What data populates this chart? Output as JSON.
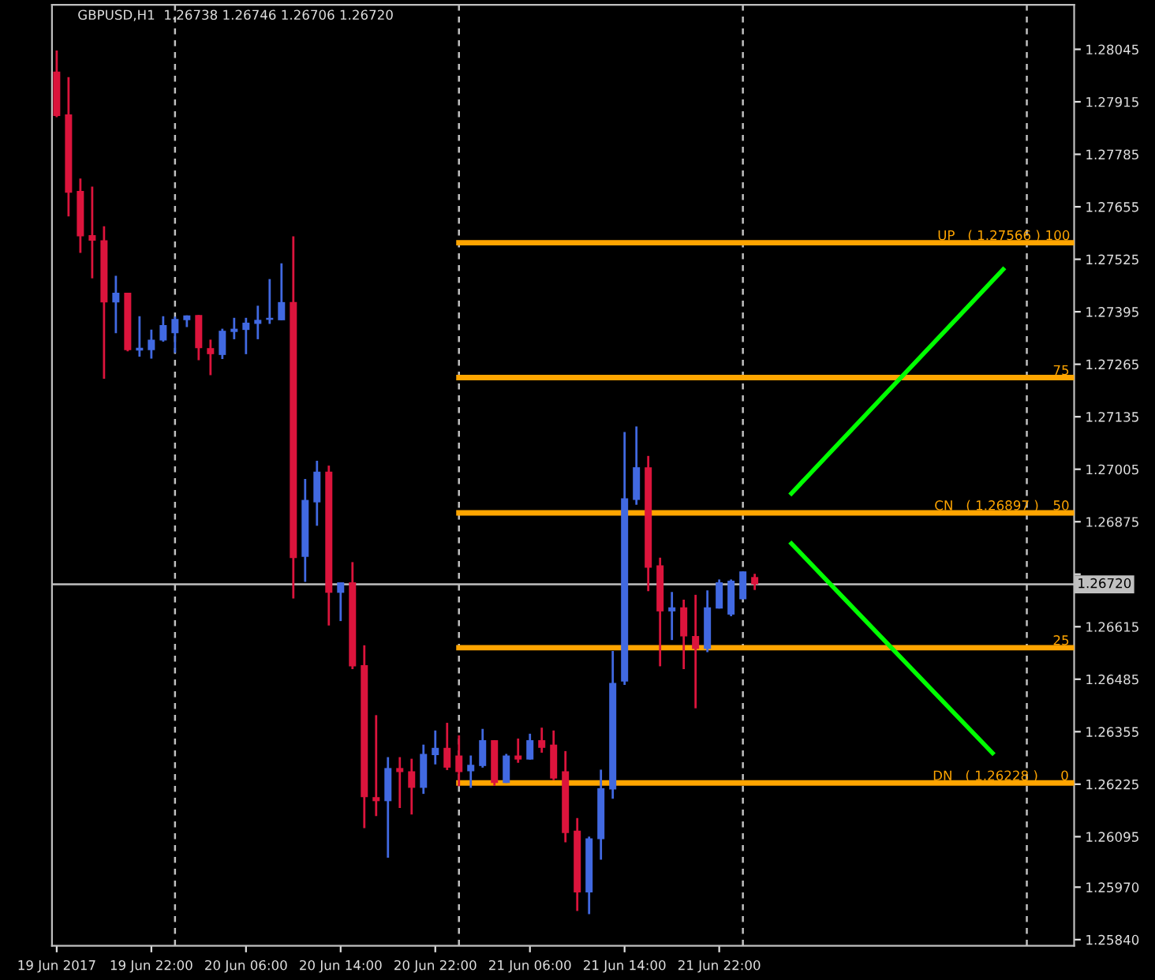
{
  "chart_data": {
    "type": "candlestick",
    "title": "GBPUSD,H1  1.26738 1.26746 1.26706 1.26720",
    "x": [
      "2017-06-19T14:00",
      "2017-06-19T15:00",
      "2017-06-19T16:00",
      "2017-06-19T17:00",
      "2017-06-19T18:00",
      "2017-06-19T19:00",
      "2017-06-19T20:00",
      "2017-06-19T21:00",
      "2017-06-19T22:00",
      "2017-06-19T23:00",
      "2017-06-20T00:00",
      "2017-06-20T01:00",
      "2017-06-20T02:00",
      "2017-06-20T03:00",
      "2017-06-20T04:00",
      "2017-06-20T05:00",
      "2017-06-20T06:00",
      "2017-06-20T07:00",
      "2017-06-20T08:00",
      "2017-06-20T09:00",
      "2017-06-20T10:00",
      "2017-06-20T11:00",
      "2017-06-20T12:00",
      "2017-06-20T13:00",
      "2017-06-20T14:00",
      "2017-06-20T15:00",
      "2017-06-20T16:00",
      "2017-06-20T17:00",
      "2017-06-20T18:00",
      "2017-06-20T19:00",
      "2017-06-20T20:00",
      "2017-06-20T21:00",
      "2017-06-20T22:00",
      "2017-06-20T23:00",
      "2017-06-21T00:00",
      "2017-06-21T01:00",
      "2017-06-21T02:00",
      "2017-06-21T03:00",
      "2017-06-21T04:00",
      "2017-06-21T05:00",
      "2017-06-21T06:00",
      "2017-06-21T07:00",
      "2017-06-21T08:00",
      "2017-06-21T09:00",
      "2017-06-21T10:00",
      "2017-06-21T11:00",
      "2017-06-21T12:00",
      "2017-06-21T13:00",
      "2017-06-21T14:00",
      "2017-06-21T15:00",
      "2017-06-21T16:00",
      "2017-06-21T17:00",
      "2017-06-21T18:00",
      "2017-06-21T19:00",
      "2017-06-21T20:00",
      "2017-06-21T21:00",
      "2017-06-21T22:00",
      "2017-06-21T23:00",
      "2017-06-22T00:00",
      "2017-06-22T01:00"
    ],
    "ohlc": [
      [
        1.2799,
        1.28042,
        1.27877,
        1.2788
      ],
      [
        1.27884,
        1.27976,
        1.27631,
        1.2769
      ],
      [
        1.27694,
        1.27725,
        1.27541,
        1.27582
      ],
      [
        1.27585,
        1.27705,
        1.27478,
        1.27571
      ],
      [
        1.27572,
        1.27607,
        1.27229,
        1.27418
      ],
      [
        1.27418,
        1.27484,
        1.27342,
        1.27442
      ],
      [
        1.27442,
        1.27442,
        1.27297,
        1.273
      ],
      [
        1.27299,
        1.27384,
        1.27284,
        1.27306
      ],
      [
        1.273,
        1.27351,
        1.27279,
        1.27326
      ],
      [
        1.27324,
        1.27384,
        1.27321,
        1.27362
      ],
      [
        1.27342,
        1.27383,
        1.27293,
        1.27377
      ],
      [
        1.27374,
        1.27386,
        1.27357,
        1.27386
      ],
      [
        1.27387,
        1.27387,
        1.27275,
        1.27305
      ],
      [
        1.27305,
        1.27326,
        1.27238,
        1.2729
      ],
      [
        1.27288,
        1.27353,
        1.27278,
        1.27348
      ],
      [
        1.27345,
        1.2738,
        1.27327,
        1.27353
      ],
      [
        1.2735,
        1.2738,
        1.2729,
        1.27368
      ],
      [
        1.27365,
        1.2741,
        1.27327,
        1.27375
      ],
      [
        1.27375,
        1.27476,
        1.27365,
        1.2738
      ],
      [
        1.27374,
        1.27515,
        1.27374,
        1.27419
      ],
      [
        1.27419,
        1.27582,
        1.26685,
        1.26785
      ],
      [
        1.26788,
        1.26981,
        1.26726,
        1.26929
      ],
      [
        1.26923,
        1.27026,
        1.26865,
        1.26999
      ],
      [
        1.26999,
        1.27014,
        1.26618,
        1.26699
      ],
      [
        1.26699,
        1.26725,
        1.26629,
        1.26725
      ],
      [
        1.26725,
        1.26775,
        1.2651,
        1.26517
      ],
      [
        1.2652,
        1.26569,
        1.26116,
        1.26193
      ],
      [
        1.26193,
        1.26396,
        1.26146,
        1.26183
      ],
      [
        1.26183,
        1.26292,
        1.26043,
        1.26265
      ],
      [
        1.26265,
        1.26292,
        1.26166,
        1.26255
      ],
      [
        1.26257,
        1.26288,
        1.2615,
        1.26216
      ],
      [
        1.26216,
        1.26323,
        1.26201,
        1.263
      ],
      [
        1.26297,
        1.26358,
        1.26274,
        1.26315
      ],
      [
        1.26315,
        1.26377,
        1.2626,
        1.26266
      ],
      [
        1.26296,
        1.26346,
        1.2622,
        1.26255
      ],
      [
        1.26257,
        1.26296,
        1.26216,
        1.26273
      ],
      [
        1.2627,
        1.26362,
        1.26266,
        1.26334
      ],
      [
        1.26334,
        1.26334,
        1.26221,
        1.26228
      ],
      [
        1.26228,
        1.263,
        1.26228,
        1.26296
      ],
      [
        1.26296,
        1.26338,
        1.26278,
        1.26286
      ],
      [
        1.26286,
        1.2635,
        1.26286,
        1.26334
      ],
      [
        1.26334,
        1.26365,
        1.26303,
        1.26315
      ],
      [
        1.26323,
        1.26358,
        1.26235,
        1.26239
      ],
      [
        1.26257,
        1.26307,
        1.26081,
        1.26104
      ],
      [
        1.2611,
        1.26141,
        1.25911,
        1.25957
      ],
      [
        1.25957,
        1.26095,
        1.25903,
        1.26091
      ],
      [
        1.26089,
        1.26261,
        1.26038,
        1.26215
      ],
      [
        1.26212,
        1.26555,
        1.26189,
        1.26476
      ],
      [
        1.26479,
        1.27097,
        1.26471,
        1.26933
      ],
      [
        1.26929,
        1.27111,
        1.26917,
        1.2701
      ],
      [
        1.2701,
        1.27038,
        1.26703,
        1.26761
      ],
      [
        1.26767,
        1.26786,
        1.26517,
        1.26653
      ],
      [
        1.26653,
        1.26701,
        1.26582,
        1.26663
      ],
      [
        1.26663,
        1.26682,
        1.2651,
        1.26591
      ],
      [
        1.26592,
        1.26694,
        1.26413,
        1.2656
      ],
      [
        1.2656,
        1.26705,
        1.26552,
        1.26663
      ],
      [
        1.2666,
        1.26732,
        1.2666,
        1.26725
      ],
      [
        1.26645,
        1.26732,
        1.26641,
        1.26729
      ],
      [
        1.26683,
        1.26752,
        1.26683,
        1.26752
      ],
      [
        1.26738,
        1.26746,
        1.26706,
        1.2672
      ]
    ],
    "colors": [
      "#dc143c",
      "#dc143c",
      "#dc143c",
      "#dc143c",
      "#dc143c",
      "#4169e1",
      "#dc143c",
      "#4169e1",
      "#4169e1",
      "#4169e1",
      "#4169e1",
      "#4169e1",
      "#dc143c",
      "#dc143c",
      "#4169e1",
      "#4169e1",
      "#4169e1",
      "#4169e1",
      "#4169e1",
      "#4169e1",
      "#dc143c",
      "#4169e1",
      "#4169e1",
      "#dc143c",
      "#4169e1",
      "#dc143c",
      "#dc143c",
      "#dc143c",
      "#4169e1",
      "#dc143c",
      "#dc143c",
      "#4169e1",
      "#4169e1",
      "#dc143c",
      "#dc143c",
      "#4169e1",
      "#4169e1",
      "#dc143c",
      "#4169e1",
      "#dc143c",
      "#4169e1",
      "#dc143c",
      "#dc143c",
      "#dc143c",
      "#dc143c",
      "#4169e1",
      "#4169e1",
      "#4169e1",
      "#4169e1",
      "#4169e1",
      "#dc143c",
      "#dc143c",
      "#4169e1",
      "#dc143c",
      "#dc143c",
      "#4169e1",
      "#4169e1",
      "#4169e1",
      "#4169e1",
      "#dc143c"
    ],
    "series": [
      {
        "type": "line",
        "color": "#ffa500",
        "x": [
          "2017-06-21T00:00",
          "2017-06-23T04:00"
        ],
        "values": [
          1.27566,
          1.27566
        ]
      },
      {
        "type": "line",
        "color": "#ffa500",
        "x": [
          "2017-06-21T00:00",
          "2017-06-23T04:00"
        ],
        "values": [
          1.27232,
          1.27232
        ]
      },
      {
        "type": "line",
        "color": "#ffa500",
        "x": [
          "2017-06-21T00:00",
          "2017-06-23T04:00"
        ],
        "values": [
          1.26897,
          1.26897
        ]
      },
      {
        "type": "line",
        "color": "#ffa500",
        "x": [
          "2017-06-21T00:00",
          "2017-06-23T04:00"
        ],
        "values": [
          1.26563,
          1.26563
        ]
      },
      {
        "type": "line",
        "color": "#ffa500",
        "x": [
          "2017-06-21T00:00",
          "2017-06-23T04:00"
        ],
        "values": [
          1.26228,
          1.26228
        ]
      },
      {
        "type": "line",
        "color": "#00ff00",
        "x": [
          "2017-06-22T04:06",
          "2017-06-22T22:00"
        ],
        "values": [
          1.26945,
          1.275
        ]
      },
      {
        "type": "line",
        "color": "#00ff00",
        "x": [
          "2017-06-22T04:06",
          "2017-06-22T21:06"
        ],
        "values": [
          1.26821,
          1.26302
        ]
      }
    ],
    "ref_lines": [
      {
        "axis": "x",
        "value": "2017-06-20T00:00",
        "color": "#c0c0c0",
        "line_style": "dashed"
      },
      {
        "axis": "x",
        "value": "2017-06-21T00:00",
        "color": "#c0c0c0",
        "line_style": "dashed"
      },
      {
        "axis": "x",
        "value": "2017-06-22T00:00",
        "color": "#c0c0c0",
        "line_style": "dashed"
      },
      {
        "axis": "x",
        "value": "2017-06-23T00:00",
        "color": "#c0c0c0",
        "line_style": "dashed"
      },
      {
        "axis": "y",
        "value": 1.2672,
        "label": "1.26720",
        "color": "#c0c0c0",
        "line_style": "solid"
      }
    ],
    "annotations": [
      {
        "text": "UP   ( 1.27566 )",
        "x": "2017-06-22T20:48",
        "y": 1.27566
      },
      {
        "text": "100",
        "x": "2017-06-23T02:36",
        "y": 1.27566
      },
      {
        "text": "75",
        "x": "2017-06-23T02:54",
        "y": 1.27232
      },
      {
        "text": "CN   ( 1.26897 )",
        "x": "2017-06-22T20:36",
        "y": 1.26897
      },
      {
        "text": "50",
        "x": "2017-06-23T02:54",
        "y": 1.26897
      },
      {
        "text": "25",
        "x": "2017-06-23T02:54",
        "y": 1.26563
      },
      {
        "text": "DN   ( 1.26228 )",
        "x": "2017-06-22T20:30",
        "y": 1.26228
      },
      {
        "text": "0",
        "x": "2017-06-23T03:12",
        "y": 1.26228
      }
    ],
    "xlim": [
      "2017-06-19T13:36",
      "2017-06-23T04:00"
    ],
    "ylim": [
      1.25825,
      1.28155
    ],
    "xticks": [
      {
        "value": "2017-06-19T14:00",
        "label": "19 Jun 2017"
      },
      {
        "value": "2017-06-19T22:00",
        "label": "19 Jun 22:00"
      },
      {
        "value": "2017-06-20T06:00",
        "label": "20 Jun 06:00"
      },
      {
        "value": "2017-06-20T14:00",
        "label": "20 Jun 14:00"
      },
      {
        "value": "2017-06-20T22:00",
        "label": "20 Jun 22:00"
      },
      {
        "value": "2017-06-21T06:00",
        "label": "21 Jun 06:00"
      },
      {
        "value": "2017-06-21T14:00",
        "label": "21 Jun 14:00"
      },
      {
        "value": "2017-06-21T22:00",
        "label": "21 Jun 22:00"
      }
    ],
    "yticks": [
      {
        "value": 1.28045,
        "label": "1.28045"
      },
      {
        "value": 1.27915,
        "label": "1.27915"
      },
      {
        "value": 1.27785,
        "label": "1.27785"
      },
      {
        "value": 1.27655,
        "label": "1.27655"
      },
      {
        "value": 1.27525,
        "label": "1.27525"
      },
      {
        "value": 1.27395,
        "label": "1.27395"
      },
      {
        "value": 1.27265,
        "label": "1.27265"
      },
      {
        "value": 1.27135,
        "label": "1.27135"
      },
      {
        "value": 1.27005,
        "label": "1.27005"
      },
      {
        "value": 1.26875,
        "label": "1.26875"
      },
      {
        "value": 1.26745,
        "label": null
      },
      {
        "value": 1.26615,
        "label": "1.26615"
      },
      {
        "value": 1.26485,
        "label": "1.26485"
      },
      {
        "value": 1.26355,
        "label": "1.26355"
      },
      {
        "value": 1.26225,
        "label": "1.26225"
      },
      {
        "value": 1.26095,
        "label": "1.26095"
      },
      {
        "value": 1.2597,
        "label": "1.25970"
      },
      {
        "value": 1.2584,
        "label": "1.25840"
      }
    ],
    "grid": false
  }
}
